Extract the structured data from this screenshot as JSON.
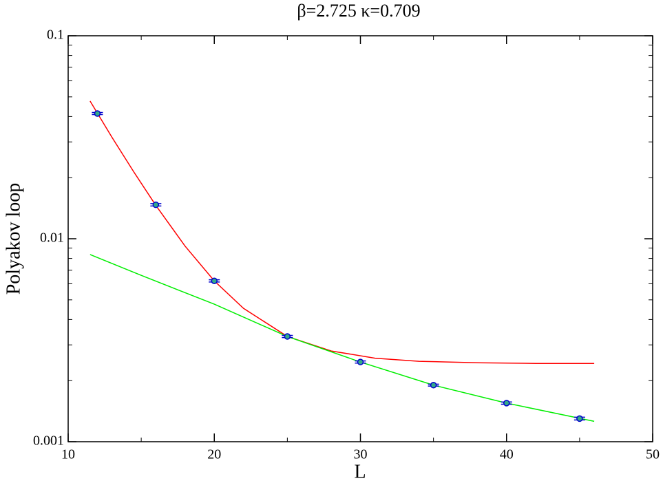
{
  "chart_data": {
    "type": "scatter",
    "title": "β=2.725 κ=0.709",
    "x_label": "L",
    "y_label": "Polyakov loop",
    "xlim": [
      10,
      50
    ],
    "xticks": [
      10,
      20,
      30,
      40,
      50
    ],
    "ylim": [
      0.001,
      0.1
    ],
    "yticks": [
      0.001,
      0.01,
      0.1
    ],
    "log_y": true,
    "points": {
      "color": "#0000cc",
      "x": [
        12,
        16,
        20,
        25,
        30,
        35,
        40,
        45
      ],
      "values": [
        0.0414,
        0.0147,
        0.0062,
        0.0033,
        0.00247,
        0.0019,
        0.00155,
        0.0013
      ],
      "errors": [
        0.0005,
        0.0002,
        8e-05,
        4e-05,
        3e-05,
        2e-05,
        2e-05,
        2e-05
      ]
    },
    "curves": [
      {
        "color": "#ff0000",
        "x": [
          11.5,
          13,
          14.5,
          16,
          18,
          20,
          22,
          25,
          28,
          31,
          34,
          38,
          42,
          46
        ],
        "values": [
          0.0477,
          0.0316,
          0.0213,
          0.0146,
          0.0092,
          0.0062,
          0.00454,
          0.0033,
          0.0028,
          0.00258,
          0.00249,
          0.00245,
          0.00243,
          0.00243
        ]
      },
      {
        "color": "#00ee00",
        "x": [
          11.5,
          15,
          20,
          25,
          30,
          35,
          40,
          46
        ],
        "values": [
          0.00836,
          0.0066,
          0.00476,
          0.0033,
          0.00247,
          0.0019,
          0.00155,
          0.00126
        ]
      }
    ]
  }
}
